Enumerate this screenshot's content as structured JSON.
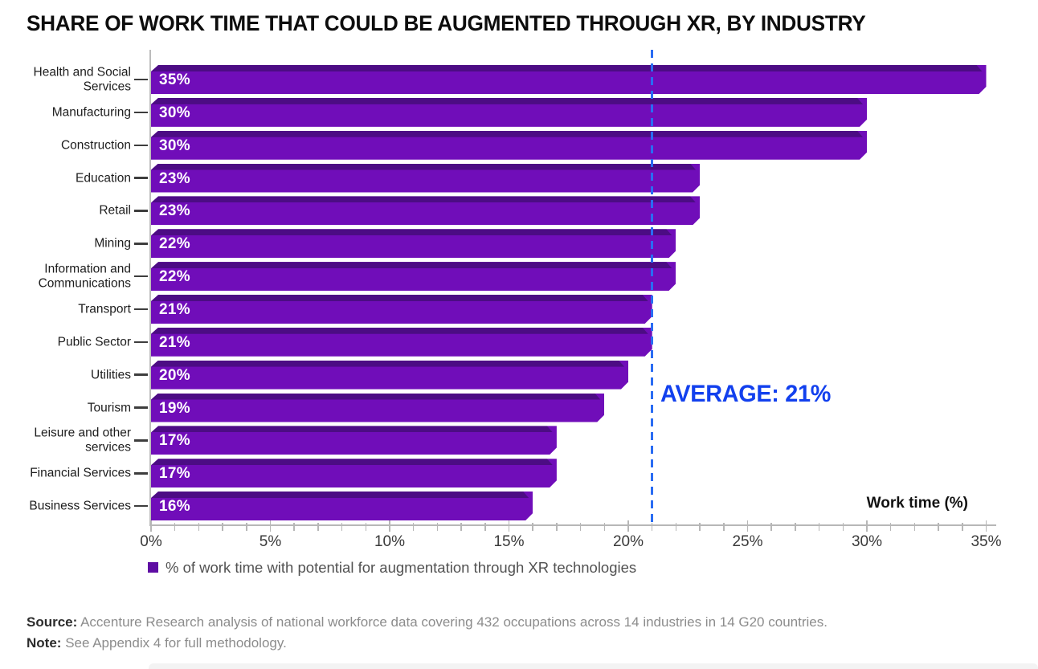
{
  "title": "SHARE OF WORK TIME THAT COULD BE AUGMENTED THROUGH XR, BY INDUSTRY",
  "chart_data": {
    "type": "bar",
    "orientation": "horizontal",
    "categories": [
      "Health and Social Services",
      "Manufacturing",
      "Construction",
      "Education",
      "Retail",
      "Mining",
      "Information and Communications",
      "Transport",
      "Public Sector",
      "Utilities",
      "Tourism",
      "Leisure and other services",
      "Financial Services",
      "Business Services"
    ],
    "values": [
      35,
      30,
      30,
      23,
      23,
      22,
      22,
      21,
      21,
      20,
      19,
      17,
      17,
      16
    ],
    "value_labels": [
      "35%",
      "30%",
      "30%",
      "23%",
      "23%",
      "22%",
      "22%",
      "21%",
      "21%",
      "20%",
      "19%",
      "17%",
      "17%",
      "16%"
    ],
    "xlabel": "Work time (%)",
    "x_ticks": [
      "0%",
      "5%",
      "10%",
      "15%",
      "20%",
      "25%",
      "30%",
      "35%"
    ],
    "xlim": [
      0,
      35
    ],
    "minor_tick_step": 1,
    "average": {
      "value": 21,
      "label": "AVERAGE: 21%"
    },
    "legend": [
      "% of work time with potential for augmentation through XR technologies"
    ],
    "grid": false,
    "legend_position": "bottom",
    "colors": {
      "bar_body": "#700DB9",
      "bar_top_face": "#4C0C84",
      "legend_swatch": "#5E0CA3",
      "average_line": "#2A6CF3",
      "average_text": "#1240EE",
      "axis": "#b7b7b7"
    }
  },
  "footer": {
    "source_label": "Source:",
    "source_text": "Accenture Research analysis of national workforce data covering 432 occupations across 14 industries in 14 G20 countries.",
    "note_label": "Note:",
    "note_text": "See Appendix 4 for full methodology."
  }
}
